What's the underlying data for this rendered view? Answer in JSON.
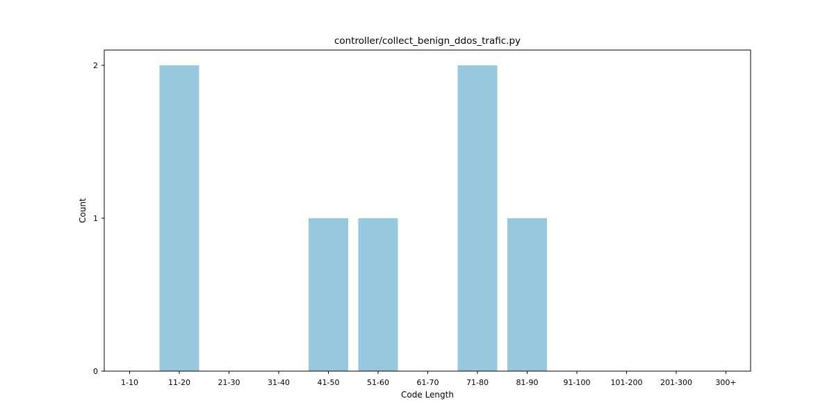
{
  "chart_data": {
    "type": "bar",
    "title": "controller/collect_benign_ddos_trafic.py",
    "xlabel": "Code Length",
    "ylabel": "Count",
    "categories": [
      "1-10",
      "11-20",
      "21-30",
      "31-40",
      "41-50",
      "51-60",
      "61-70",
      "71-80",
      "81-90",
      "91-100",
      "101-200",
      "201-300",
      "300+"
    ],
    "values": [
      0,
      2,
      0,
      0,
      1,
      1,
      0,
      2,
      1,
      0,
      0,
      0,
      0
    ],
    "yticks": [
      0,
      1,
      2
    ],
    "ylim": [
      0,
      2.1
    ],
    "grid": false,
    "legend": "none",
    "bar_color": "#96c9dd"
  }
}
